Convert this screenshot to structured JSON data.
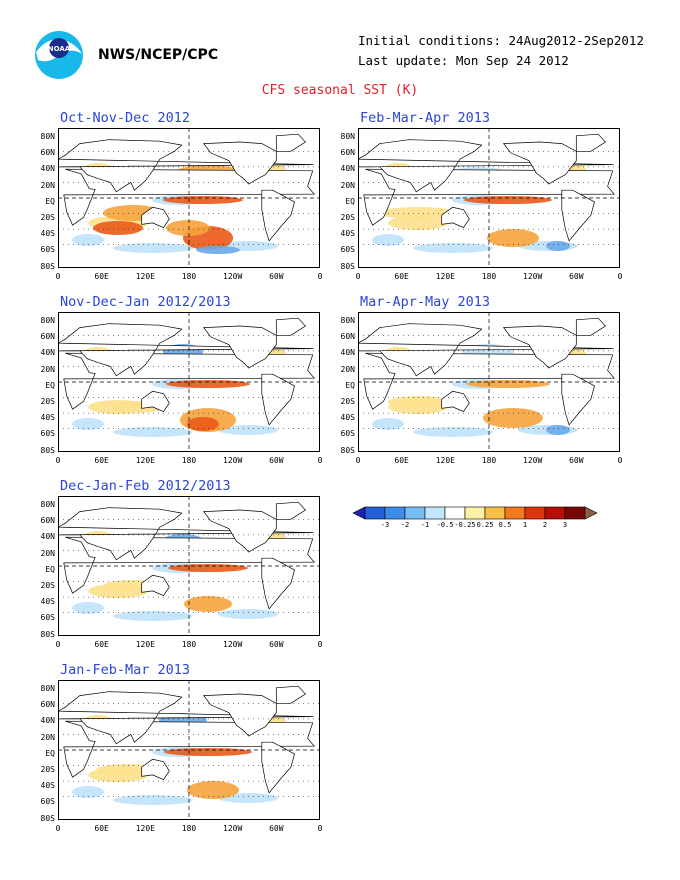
{
  "header": {
    "agency": "NWS/NCEP/CPC",
    "initial_conditions": "Initial conditions: 24Aug2012-2Sep2012",
    "last_update": "Last update: Mon Sep 24 2012",
    "title": "CFS seasonal SST (K)",
    "logo_text": "NOAA"
  },
  "lat_labels": [
    "80N",
    "60N",
    "40N",
    "20N",
    "EQ",
    "20S",
    "40S",
    "60S",
    "80S"
  ],
  "lon_labels": [
    "0",
    "60E",
    "120E",
    "180",
    "120W",
    "60W",
    "0"
  ],
  "panels": [
    {
      "title": "Oct-Nov-Dec 2012"
    },
    {
      "title": "Feb-Mar-Apr 2013"
    },
    {
      "title": "Nov-Dec-Jan 2012/2013"
    },
    {
      "title": "Mar-Apr-May 2013"
    },
    {
      "title": "Dec-Jan-Feb 2012/2013"
    },
    {
      "title": "Jan-Feb-Mar 2013"
    }
  ],
  "colorbar": {
    "labels": [
      "-3",
      "-2",
      "-1",
      "-0.5",
      "-0.25",
      "0.25",
      "0.5",
      "1",
      "2",
      "3"
    ],
    "colors": [
      "#1c24b0",
      "#2660d8",
      "#3c8ce8",
      "#78bcf4",
      "#c2e6fc",
      "#ffffff",
      "#fff0a8",
      "#f8c048",
      "#f07a20",
      "#e03410",
      "#b41008",
      "#780806",
      "#8c6048"
    ]
  },
  "map_colors": {
    "warm_light": "#fde08c",
    "warm_mid": "#f6a43c",
    "warm_strong": "#ea5a18",
    "warm_extreme": "#c81c08",
    "cool_light": "#bfe2fa",
    "cool_mid": "#6aa8ec",
    "cool_strong": "#2a4cc4"
  }
}
